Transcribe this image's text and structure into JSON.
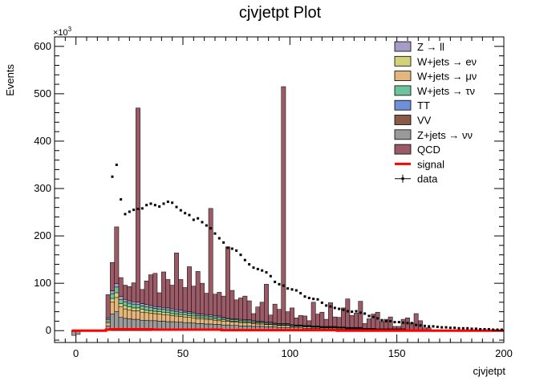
{
  "chart_data": {
    "type": "area",
    "title": "cjvjetpt Plot",
    "xlabel": "cjvjetpt",
    "ylabel": "Events",
    "y_multiplier": "×10",
    "y_multiplier_exp": "3",
    "xlim": [
      -10,
      200
    ],
    "ylim": [
      -25,
      620
    ],
    "x_ticks": [
      0,
      50,
      100,
      150,
      200
    ],
    "y_ticks": [
      0,
      100,
      200,
      300,
      400,
      500,
      600
    ],
    "legend": [
      {
        "label": "Z → ll",
        "color": "#a79bc8",
        "kind": "box"
      },
      {
        "label": "W+jets → eν",
        "color": "#d2d27a",
        "kind": "box"
      },
      {
        "label": "W+jets → μν",
        "color": "#e4b57c",
        "kind": "box"
      },
      {
        "label": "W+jets → τν",
        "color": "#6dc49c",
        "kind": "box"
      },
      {
        "label": "TT",
        "color": "#6f8fd8",
        "kind": "box"
      },
      {
        "label": "VV",
        "color": "#8a5a48",
        "kind": "box"
      },
      {
        "label": "Z+jets → νν",
        "color": "#9a9a9a",
        "kind": "box"
      },
      {
        "label": "QCD",
        "color": "#9a5b67",
        "kind": "box"
      },
      {
        "label": "signal",
        "color": "#ff0000",
        "kind": "line"
      },
      {
        "label": "data",
        "color": "#000000",
        "kind": "marker"
      }
    ],
    "legend_position": "top-right",
    "bin_width": 2,
    "bins_x_start": [
      -2,
      0,
      2,
      4,
      6,
      8,
      10,
      12,
      14,
      16,
      18,
      20,
      22,
      24,
      26,
      28,
      30,
      32,
      34,
      36,
      38,
      40,
      42,
      44,
      46,
      48,
      50,
      52,
      54,
      56,
      58,
      60,
      62,
      64,
      66,
      68,
      70,
      72,
      74,
      76,
      78,
      80,
      82,
      84,
      86,
      88,
      90,
      92,
      94,
      96,
      98,
      100,
      102,
      104,
      106,
      108,
      110,
      112,
      114,
      116,
      118,
      120,
      122,
      124,
      126,
      128,
      130,
      132,
      134,
      136,
      138,
      140,
      142,
      144,
      146,
      148,
      150,
      152,
      154,
      156,
      158,
      160,
      162,
      164,
      166,
      168,
      170,
      172,
      174,
      176,
      178,
      180,
      182,
      184,
      186,
      188,
      190,
      192,
      194,
      196,
      198
    ],
    "series": [
      {
        "name": "Z+jets → νν",
        "values": [
          -10,
          -8,
          0,
          0,
          0,
          0,
          0,
          0,
          10,
          35,
          40,
          28,
          26,
          25,
          24,
          24,
          22,
          22,
          21,
          21,
          20,
          20,
          19,
          19,
          18,
          18,
          17,
          17,
          16,
          15,
          15,
          14,
          14,
          13,
          13,
          12,
          12,
          11,
          11,
          10,
          10,
          10,
          9,
          9,
          9,
          8,
          8,
          8,
          7,
          7,
          7,
          6,
          6,
          6,
          5,
          5,
          5,
          5,
          4,
          4,
          4,
          4,
          3,
          3,
          3,
          3,
          3,
          3,
          2,
          2,
          2,
          2,
          2,
          2,
          2,
          2,
          2,
          2,
          1,
          1,
          1,
          1,
          1,
          1,
          1,
          1,
          1,
          1,
          1,
          1,
          1,
          1,
          1,
          1,
          1,
          1,
          1,
          1,
          1,
          1,
          1
        ]
      },
      {
        "name": "W+jets → μν",
        "values": [
          0,
          0,
          0,
          0,
          0,
          0,
          0,
          0,
          6,
          25,
          30,
          22,
          20,
          19,
          18,
          18,
          17,
          16,
          16,
          15,
          15,
          14,
          14,
          13,
          13,
          12,
          12,
          11,
          11,
          10,
          10,
          10,
          9,
          9,
          8,
          8,
          8,
          7,
          7,
          7,
          6,
          6,
          6,
          5,
          5,
          5,
          5,
          4,
          4,
          4,
          4,
          3,
          3,
          3,
          3,
          3,
          2,
          2,
          2,
          2,
          2,
          2,
          2,
          2,
          1,
          1,
          1,
          1,
          1,
          1,
          1,
          1,
          1,
          1,
          1,
          1,
          1,
          1,
          0,
          0,
          0,
          0,
          0,
          0,
          0,
          0,
          0,
          0,
          0,
          0,
          0,
          0,
          0,
          0,
          0,
          0,
          0,
          0,
          0,
          0,
          0
        ]
      },
      {
        "name": "W+jets → eν",
        "values": [
          0,
          0,
          0,
          0,
          0,
          0,
          0,
          0,
          3,
          8,
          10,
          7,
          7,
          6,
          6,
          6,
          6,
          5,
          5,
          5,
          5,
          5,
          5,
          4,
          4,
          4,
          4,
          4,
          4,
          3,
          3,
          3,
          3,
          3,
          3,
          3,
          2,
          2,
          2,
          2,
          2,
          2,
          2,
          2,
          2,
          1,
          1,
          1,
          1,
          1,
          1,
          1,
          1,
          1,
          1,
          1,
          1,
          1,
          1,
          1,
          1,
          1,
          1,
          1,
          1,
          1,
          1,
          1,
          0,
          0,
          0,
          0,
          0,
          0,
          0,
          0,
          0,
          0,
          0,
          0,
          0,
          0,
          0,
          0,
          0,
          0,
          0,
          0,
          0,
          0,
          0,
          0,
          0,
          0,
          0,
          0,
          0,
          0,
          0,
          0,
          0
        ]
      },
      {
        "name": "W+jets → τν",
        "values": [
          0,
          0,
          0,
          0,
          0,
          0,
          0,
          0,
          4,
          10,
          12,
          9,
          8,
          8,
          8,
          7,
          7,
          7,
          7,
          6,
          6,
          6,
          6,
          6,
          5,
          5,
          5,
          5,
          5,
          4,
          4,
          4,
          4,
          4,
          4,
          3,
          3,
          3,
          3,
          3,
          3,
          3,
          2,
          2,
          2,
          2,
          2,
          2,
          2,
          2,
          2,
          2,
          1,
          1,
          1,
          1,
          1,
          1,
          1,
          1,
          1,
          1,
          1,
          1,
          1,
          1,
          1,
          1,
          1,
          1,
          1,
          1,
          1,
          1,
          1,
          1,
          1,
          1,
          1,
          0,
          0,
          0,
          0,
          0,
          0,
          0,
          0,
          0,
          0,
          0,
          0,
          0,
          0,
          0,
          0,
          0,
          0,
          0,
          0,
          0,
          0
        ]
      },
      {
        "name": "Z → ll",
        "values": [
          0,
          0,
          0,
          0,
          0,
          0,
          0,
          0,
          3,
          6,
          7,
          6,
          5,
          5,
          5,
          5,
          5,
          5,
          4,
          4,
          4,
          4,
          4,
          4,
          4,
          4,
          3,
          3,
          3,
          3,
          3,
          3,
          3,
          3,
          3,
          2,
          2,
          2,
          2,
          2,
          2,
          2,
          2,
          2,
          2,
          2,
          2,
          1,
          1,
          1,
          1,
          1,
          1,
          1,
          1,
          1,
          1,
          1,
          1,
          1,
          1,
          1,
          1,
          1,
          1,
          1,
          1,
          1,
          1,
          1,
          1,
          0,
          0,
          0,
          0,
          0,
          0,
          0,
          0,
          0,
          0,
          0,
          0,
          0,
          0,
          0,
          0,
          0,
          0,
          0,
          0,
          0,
          0,
          0,
          0,
          0,
          0,
          0,
          0,
          0,
          0
        ]
      },
      {
        "name": "QCD",
        "values": [
          0,
          0,
          0,
          0,
          0,
          0,
          0,
          0,
          50,
          60,
          120,
          40,
          30,
          30,
          40,
          410,
          30,
          50,
          65,
          70,
          30,
          75,
          60,
          50,
          120,
          65,
          50,
          95,
          55,
          90,
          65,
          45,
          225,
          45,
          50,
          45,
          150,
          60,
          40,
          45,
          50,
          40,
          15,
          30,
          40,
          80,
          15,
          40,
          30,
          500,
          25,
          35,
          15,
          20,
          20,
          10,
          50,
          25,
          30,
          15,
          50,
          20,
          20,
          40,
          60,
          25,
          30,
          55,
          10,
          20,
          30,
          35,
          15,
          20,
          25,
          5,
          5,
          20,
          25,
          15,
          35,
          20,
          5,
          5,
          0,
          0,
          0,
          0,
          0,
          0,
          0,
          0,
          0,
          0,
          0,
          0,
          0,
          0,
          0,
          0,
          0
        ]
      },
      {
        "name": "signal",
        "values": [
          0,
          0,
          0,
          0,
          0,
          0,
          0,
          0,
          2,
          3,
          3,
          3,
          3,
          3,
          3,
          3,
          3,
          3,
          3,
          2,
          2,
          2,
          2,
          2,
          2,
          2,
          2,
          2,
          2,
          2,
          2,
          2,
          2,
          2,
          2,
          1,
          1,
          1,
          1,
          1,
          1,
          1,
          1,
          1,
          1,
          1,
          1,
          1,
          1,
          1,
          1,
          1,
          1,
          1,
          1,
          1,
          1,
          1,
          1,
          1,
          1,
          1,
          0,
          0,
          0,
          0,
          0,
          0,
          0,
          0,
          0,
          0,
          0,
          0,
          0,
          0,
          0,
          0,
          0,
          0,
          0,
          0,
          0,
          0,
          0,
          0,
          0,
          0,
          0,
          0,
          0,
          0,
          0,
          0,
          0,
          0,
          0,
          0,
          0,
          0,
          0
        ]
      }
    ],
    "data_points": {
      "x": [
        16,
        18,
        20,
        22,
        24,
        26,
        28,
        30,
        32,
        34,
        36,
        38,
        40,
        42,
        44,
        46,
        48,
        50,
        52,
        54,
        56,
        58,
        60,
        62,
        64,
        66,
        68,
        70,
        72,
        74,
        76,
        78,
        80,
        82,
        84,
        86,
        88,
        90,
        92,
        94,
        96,
        98,
        100,
        102,
        104,
        106,
        108,
        110,
        112,
        114,
        116,
        118,
        120,
        122,
        124,
        126,
        128,
        130,
        132,
        134,
        136,
        138,
        140,
        142,
        144,
        146,
        148,
        150,
        152,
        154,
        156,
        158,
        160,
        162,
        164,
        166,
        168,
        170,
        172,
        174,
        176,
        178,
        180,
        182,
        184,
        186,
        188,
        190,
        192,
        194,
        196,
        198
      ],
      "y": [
        325,
        350,
        277,
        246,
        251,
        255,
        257,
        258,
        265,
        268,
        265,
        262,
        268,
        272,
        270,
        261,
        254,
        248,
        244,
        234,
        237,
        229,
        222,
        216,
        205,
        195,
        186,
        175,
        173,
        169,
        160,
        149,
        140,
        133,
        130,
        127,
        123,
        115,
        103,
        98,
        95,
        89,
        87,
        85,
        79,
        72,
        69,
        67,
        66,
        59,
        53,
        51,
        48,
        46,
        44,
        41,
        40,
        41,
        38,
        36,
        31,
        29,
        26,
        22,
        20,
        20,
        18,
        18,
        17,
        16,
        16,
        12,
        11,
        10,
        9,
        9,
        8,
        7,
        7,
        6,
        6,
        5,
        5,
        5,
        4,
        4,
        3,
        3,
        3,
        2,
        2,
        2
      ]
    }
  }
}
